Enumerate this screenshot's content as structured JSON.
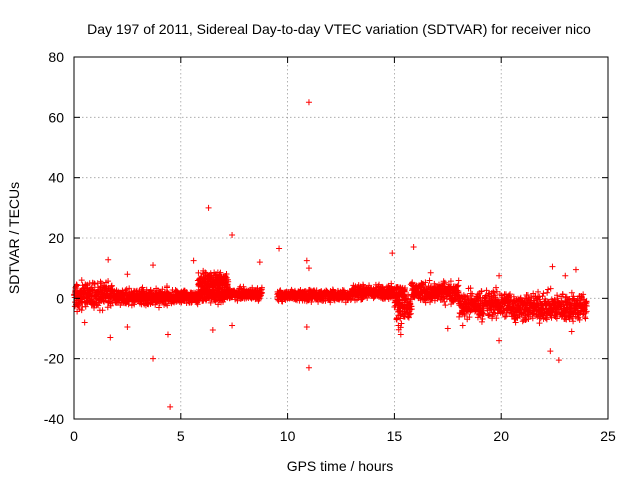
{
  "chart_data": {
    "type": "scatter",
    "title": "Day 197 of 2011, Sidereal Day-to-day VTEC variation (SDTVAR) for receiver nico",
    "xlabel": "GPS time / hours",
    "ylabel": "SDTVAR / TECUs",
    "xlim": [
      0,
      25
    ],
    "ylim": [
      -40,
      80
    ],
    "xticks": [
      "0",
      "5",
      "10",
      "15",
      "20",
      "25"
    ],
    "yticks": [
      "-40",
      "-20",
      "0",
      "20",
      "40",
      "60",
      "80"
    ],
    "grid": true,
    "marker": "+",
    "color": "#ff0000",
    "bands": [
      {
        "x0": 0.0,
        "x1": 1.8,
        "center": 1.0,
        "spread": 4.5
      },
      {
        "x0": 1.8,
        "x1": 4.5,
        "center": 0.5,
        "spread": 3.0
      },
      {
        "x0": 4.5,
        "x1": 5.8,
        "center": 0.5,
        "spread": 2.5
      },
      {
        "x0": 5.8,
        "x1": 7.2,
        "center": 5.5,
        "spread": 3.0
      },
      {
        "x0": 5.8,
        "x1": 7.0,
        "center": 1.0,
        "spread": 2.5
      },
      {
        "x0": 7.0,
        "x1": 8.8,
        "center": 1.5,
        "spread": 2.0
      },
      {
        "x0": 9.5,
        "x1": 13.0,
        "center": 1.0,
        "spread": 2.0
      },
      {
        "x0": 13.0,
        "x1": 15.5,
        "center": 2.0,
        "spread": 2.5
      },
      {
        "x0": 15.0,
        "x1": 15.8,
        "center": -3.0,
        "spread": 6.0
      },
      {
        "x0": 15.8,
        "x1": 18.0,
        "center": 2.0,
        "spread": 3.5
      },
      {
        "x0": 18.0,
        "x1": 20.5,
        "center": -2.0,
        "spread": 5.0
      },
      {
        "x0": 20.5,
        "x1": 24.0,
        "center": -3.0,
        "spread": 5.0
      }
    ],
    "outliers": [
      {
        "x": 11.0,
        "y": 65
      },
      {
        "x": 6.3,
        "y": 30
      },
      {
        "x": 7.4,
        "y": 21
      },
      {
        "x": 9.6,
        "y": 16.5
      },
      {
        "x": 1.6,
        "y": 12.8
      },
      {
        "x": 5.6,
        "y": 12.5
      },
      {
        "x": 8.7,
        "y": 12
      },
      {
        "x": 10.9,
        "y": 12.5
      },
      {
        "x": 11.0,
        "y": 10
      },
      {
        "x": 3.7,
        "y": 11
      },
      {
        "x": 2.5,
        "y": 8
      },
      {
        "x": 14.9,
        "y": 15
      },
      {
        "x": 15.9,
        "y": 17
      },
      {
        "x": 16.7,
        "y": 8.5
      },
      {
        "x": 19.9,
        "y": 7.5
      },
      {
        "x": 22.4,
        "y": 10.5
      },
      {
        "x": 23.0,
        "y": 7.5
      },
      {
        "x": 23.5,
        "y": 9.5
      },
      {
        "x": 0.5,
        "y": -8
      },
      {
        "x": 1.7,
        "y": -13
      },
      {
        "x": 4.4,
        "y": -12
      },
      {
        "x": 3.7,
        "y": -20
      },
      {
        "x": 4.5,
        "y": -36
      },
      {
        "x": 6.5,
        "y": -10.5
      },
      {
        "x": 11.0,
        "y": -23
      },
      {
        "x": 10.9,
        "y": -9.5
      },
      {
        "x": 15.3,
        "y": -12
      },
      {
        "x": 17.5,
        "y": -10
      },
      {
        "x": 19.9,
        "y": -14
      },
      {
        "x": 22.3,
        "y": -17.5
      },
      {
        "x": 22.7,
        "y": -20.5
      },
      {
        "x": 23.3,
        "y": -11
      },
      {
        "x": 2.5,
        "y": -9.5
      },
      {
        "x": 7.4,
        "y": -9
      },
      {
        "x": 18.2,
        "y": -9
      }
    ]
  }
}
